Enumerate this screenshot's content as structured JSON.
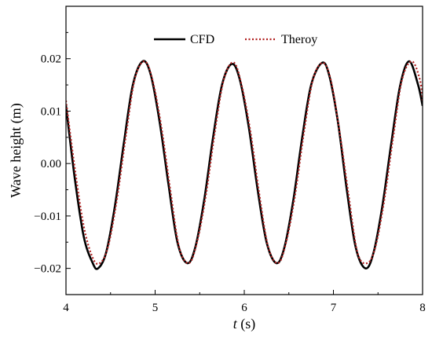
{
  "chart_data": {
    "type": "line",
    "xlabel_var": "t",
    "xlabel_unit": " (s)",
    "ylabel": "Wave height (m)",
    "xlim": [
      4,
      8
    ],
    "ylim": [
      -0.025,
      0.03
    ],
    "xticks": [
      4,
      5,
      6,
      7,
      8
    ],
    "xtick_labels": [
      "4",
      "5",
      "6",
      "7",
      "8"
    ],
    "yticks": [
      -0.02,
      -0.01,
      0.0,
      0.01,
      0.02
    ],
    "ytick_labels": [
      "−0.02",
      "−0.01",
      "0.00",
      "0.01",
      "0.02"
    ],
    "grid": false,
    "legend_position": "top-center",
    "series": [
      {
        "name": "CFD",
        "color": "#000000",
        "style": "solid",
        "x": [
          4.0,
          4.1,
          4.2,
          4.3,
          4.36,
          4.45,
          4.55,
          4.65,
          4.75,
          4.86,
          4.95,
          5.05,
          5.15,
          5.25,
          5.36,
          5.45,
          5.55,
          5.65,
          5.75,
          5.86,
          5.95,
          6.05,
          6.15,
          6.25,
          6.36,
          6.45,
          6.55,
          6.65,
          6.75,
          6.87,
          6.95,
          7.05,
          7.15,
          7.25,
          7.36,
          7.45,
          7.55,
          7.65,
          7.75,
          7.85,
          7.95,
          8.0
        ],
        "y": [
          0.011,
          -0.003,
          -0.014,
          -0.019,
          -0.02,
          -0.017,
          -0.008,
          0.004,
          0.015,
          0.0195,
          0.017,
          0.008,
          -0.004,
          -0.015,
          -0.019,
          -0.016,
          -0.007,
          0.005,
          0.015,
          0.019,
          0.016,
          0.007,
          -0.005,
          -0.015,
          -0.019,
          -0.016,
          -0.007,
          0.005,
          0.015,
          0.0192,
          0.017,
          0.008,
          -0.005,
          -0.016,
          -0.02,
          -0.017,
          -0.008,
          0.004,
          0.015,
          0.0195,
          0.015,
          0.011
        ]
      },
      {
        "name": "Theroy",
        "color": "#b22222",
        "style": "dotted",
        "x": [
          4.0,
          4.1,
          4.2,
          4.3,
          4.38,
          4.47,
          4.57,
          4.67,
          4.77,
          4.88,
          4.97,
          5.07,
          5.17,
          5.27,
          5.38,
          5.47,
          5.57,
          5.67,
          5.77,
          5.88,
          5.97,
          6.07,
          6.17,
          6.27,
          6.38,
          6.47,
          6.57,
          6.67,
          6.77,
          6.88,
          6.97,
          7.07,
          7.17,
          7.27,
          7.38,
          7.47,
          7.57,
          7.67,
          7.77,
          7.88,
          7.97,
          8.0
        ],
        "y": [
          0.012,
          -0.001,
          -0.012,
          -0.018,
          -0.019,
          -0.016,
          -0.007,
          0.005,
          0.016,
          0.0195,
          0.016,
          0.007,
          -0.005,
          -0.016,
          -0.019,
          -0.015,
          -0.006,
          0.006,
          0.016,
          0.0193,
          0.015,
          0.006,
          -0.006,
          -0.016,
          -0.019,
          -0.015,
          -0.006,
          0.006,
          0.016,
          0.0192,
          0.016,
          0.006,
          -0.006,
          -0.017,
          -0.019,
          -0.016,
          -0.007,
          0.005,
          0.016,
          0.0195,
          0.016,
          0.012
        ]
      }
    ]
  }
}
